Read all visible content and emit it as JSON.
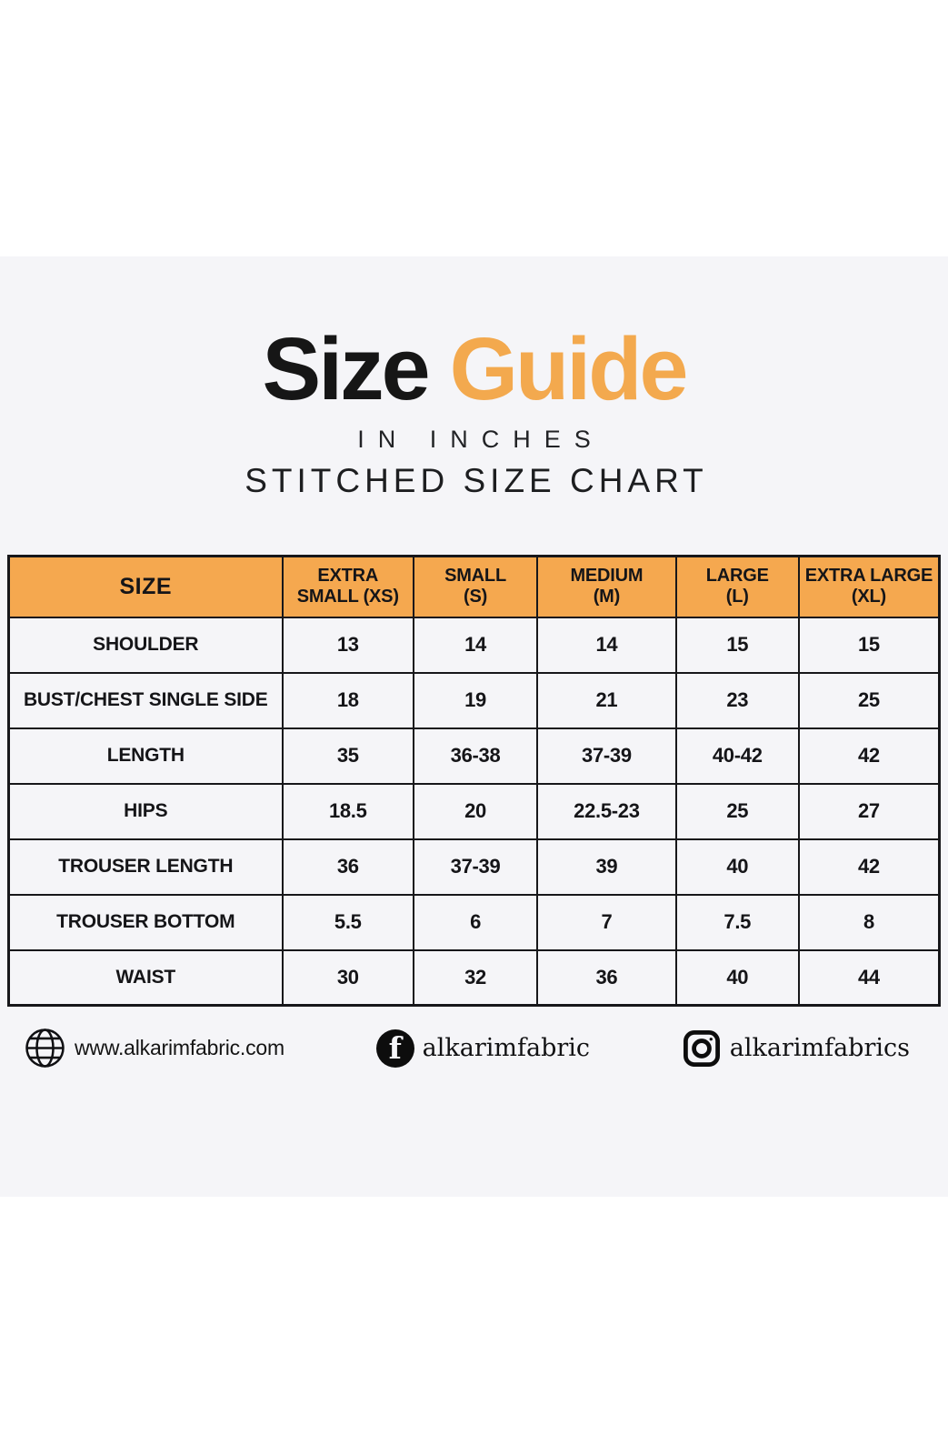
{
  "title": {
    "black": "Size",
    "orange": "Guide",
    "subtitle1": "IN INCHES",
    "subtitle2": "STITCHED SIZE CHART"
  },
  "table": {
    "header": [
      {
        "lines": [
          "SIZE"
        ]
      },
      {
        "lines": [
          "EXTRA",
          "SMALL (XS)"
        ]
      },
      {
        "lines": [
          "SMALL",
          "(S)"
        ]
      },
      {
        "lines": [
          "MEDIUM",
          "(M)"
        ]
      },
      {
        "lines": [
          "LARGE",
          "(L)"
        ]
      },
      {
        "lines": [
          "EXTRA LARGE",
          "(XL)"
        ]
      }
    ],
    "rows": [
      {
        "label": "SHOULDER",
        "values": [
          "13",
          "14",
          "14",
          "15",
          "15"
        ]
      },
      {
        "label": "BUST/CHEST SINGLE SIDE",
        "values": [
          "18",
          "19",
          "21",
          "23",
          "25"
        ]
      },
      {
        "label": "LENGTH",
        "values": [
          "35",
          "36-38",
          "37-39",
          "40-42",
          "42"
        ]
      },
      {
        "label": "HIPS",
        "values": [
          "18.5",
          "20",
          "22.5-23",
          "25",
          "27"
        ]
      },
      {
        "label": "TROUSER LENGTH",
        "values": [
          "36",
          "37-39",
          "39",
          "40",
          "42"
        ]
      },
      {
        "label": "TROUSER BOTTOM",
        "values": [
          "5.5",
          "6",
          "7",
          "7.5",
          "8"
        ]
      },
      {
        "label": "WAIST",
        "values": [
          "30",
          "32",
          "36",
          "40",
          "44"
        ]
      }
    ]
  },
  "footer": {
    "website": "www.alkarimfabric.com",
    "facebook": "alkarimfabric",
    "facebook_glyph": "f",
    "instagram": "alkarimfabrics"
  },
  "colors": {
    "accent_orange": "#F3A94E",
    "header_orange": "#F5A84F",
    "card_background": "#F5F5F8",
    "text_black": "#151518",
    "border_black": "#17171A"
  },
  "chart_data": {
    "type": "table",
    "title": "Size Guide",
    "subtitle": "IN INCHES — STITCHED SIZE CHART",
    "columns": [
      "SIZE",
      "EXTRA SMALL (XS)",
      "SMALL (S)",
      "MEDIUM (M)",
      "LARGE (L)",
      "EXTRA LARGE (XL)"
    ],
    "rows": [
      [
        "SHOULDER",
        "13",
        "14",
        "14",
        "15",
        "15"
      ],
      [
        "BUST/CHEST SINGLE SIDE",
        "18",
        "19",
        "21",
        "23",
        "25"
      ],
      [
        "LENGTH",
        "35",
        "36-38",
        "37-39",
        "40-42",
        "42"
      ],
      [
        "HIPS",
        "18.5",
        "20",
        "22.5-23",
        "25",
        "27"
      ],
      [
        "TROUSER LENGTH",
        "36",
        "37-39",
        "39",
        "40",
        "42"
      ],
      [
        "TROUSER BOTTOM",
        "5.5",
        "6",
        "7",
        "7.5",
        "8"
      ],
      [
        "WAIST",
        "30",
        "32",
        "36",
        "40",
        "44"
      ]
    ]
  }
}
